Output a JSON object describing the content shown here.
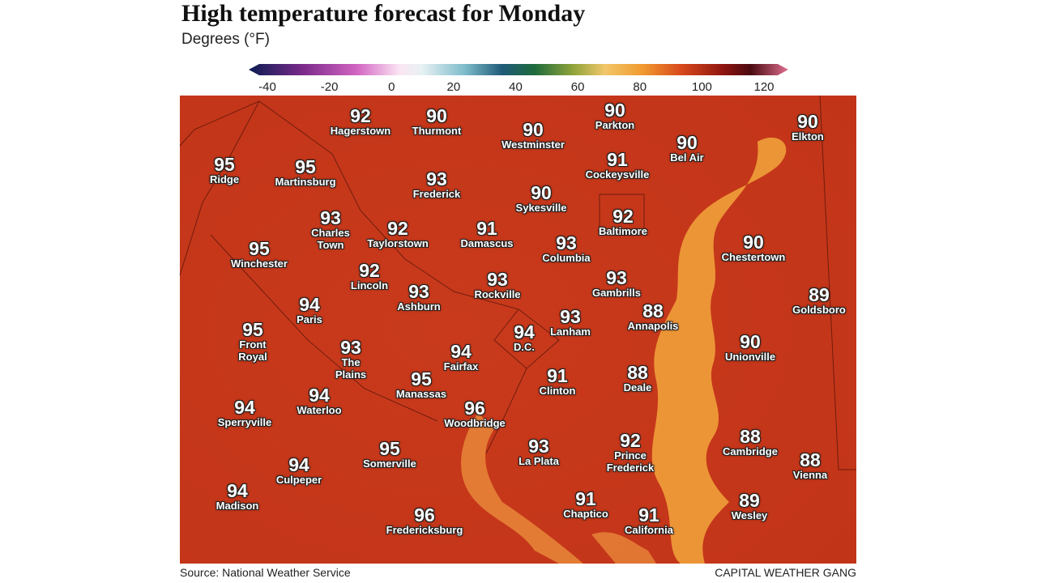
{
  "header": {
    "title": "High temperature forecast for Monday",
    "subtitle": "Degrees (°F)"
  },
  "colorbar": {
    "ticks": [
      -40,
      -20,
      0,
      20,
      40,
      60,
      80,
      100,
      120
    ]
  },
  "cities": [
    {
      "name": "Hagerstown",
      "temp": 92
    },
    {
      "name": "Thurmont",
      "temp": 90
    },
    {
      "name": "Parkton",
      "temp": 90
    },
    {
      "name": "Westminster",
      "temp": 90
    },
    {
      "name": "Bel Air",
      "temp": 90
    },
    {
      "name": "Elkton",
      "temp": 90
    },
    {
      "name": "Ridge",
      "temp": 95
    },
    {
      "name": "Martinsburg",
      "temp": 95
    },
    {
      "name": "Cockeysville",
      "temp": 91
    },
    {
      "name": "Frederick",
      "temp": 93
    },
    {
      "name": "Sykesville",
      "temp": 90
    },
    {
      "name": "Charles Town",
      "temp": 93
    },
    {
      "name": "Taylorstown",
      "temp": 92
    },
    {
      "name": "Damascus",
      "temp": 91
    },
    {
      "name": "Baltimore",
      "temp": 92
    },
    {
      "name": "Winchester",
      "temp": 95
    },
    {
      "name": "Columbia",
      "temp": 93
    },
    {
      "name": "Chestertown",
      "temp": 90
    },
    {
      "name": "Lincoln",
      "temp": 92
    },
    {
      "name": "Ashburn",
      "temp": 93
    },
    {
      "name": "Rockville",
      "temp": 93
    },
    {
      "name": "Gambrills",
      "temp": 93
    },
    {
      "name": "Goldsboro",
      "temp": 89
    },
    {
      "name": "Paris",
      "temp": 94
    },
    {
      "name": "Annapolis",
      "temp": 88
    },
    {
      "name": "Lanham",
      "temp": 93
    },
    {
      "name": "Front Royal",
      "temp": 95
    },
    {
      "name": "D.C.",
      "temp": 94
    },
    {
      "name": "Unionville",
      "temp": 90
    },
    {
      "name": "The Plains",
      "temp": 93
    },
    {
      "name": "Fairfax",
      "temp": 94
    },
    {
      "name": "Clinton",
      "temp": 91
    },
    {
      "name": "Deale",
      "temp": 88
    },
    {
      "name": "Manassas",
      "temp": 95
    },
    {
      "name": "Sperryville",
      "temp": 94
    },
    {
      "name": "Waterloo",
      "temp": 94
    },
    {
      "name": "Woodbridge",
      "temp": 96
    },
    {
      "name": "Cambridge",
      "temp": 88
    },
    {
      "name": "Prince Frederick",
      "temp": 92
    },
    {
      "name": "La Plata",
      "temp": 93
    },
    {
      "name": "Somerville",
      "temp": 95
    },
    {
      "name": "Vienna",
      "temp": 88
    },
    {
      "name": "Culpeper",
      "temp": 94
    },
    {
      "name": "Madison",
      "temp": 94
    },
    {
      "name": "Chaptico",
      "temp": 91
    },
    {
      "name": "Wesley",
      "temp": 89
    },
    {
      "name": "California",
      "temp": 91
    },
    {
      "name": "Fredericksburg",
      "temp": 96
    }
  ],
  "footer": {
    "source": "Source: National Weather Service",
    "credit": "CAPITAL WEATHER GANG"
  }
}
